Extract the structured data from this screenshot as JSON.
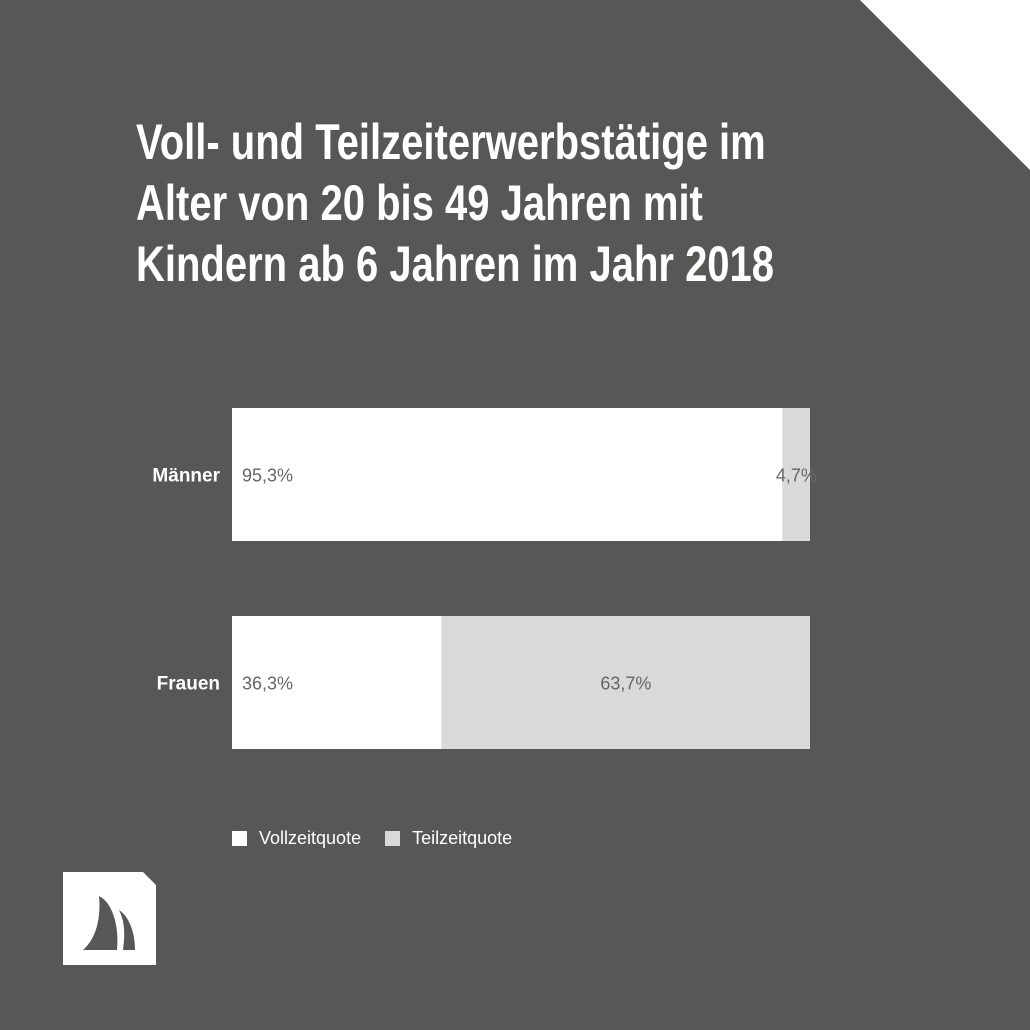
{
  "title_lines": [
    "Voll- und Teilzeiterwerbstätige im",
    "Alter von 20 bis 49 Jahren mit",
    "Kindern ab 6 Jahren im Jahr 2018"
  ],
  "colors": {
    "background": "#575756",
    "vollzeit": "#ffffff",
    "teilzeit": "#d9d9d9",
    "label_text": "#666666"
  },
  "chart_data": {
    "type": "bar",
    "orientation": "horizontal",
    "stacked": true,
    "title": "Voll- und Teilzeiterwerbstätige im Alter von 20 bis 49 Jahren mit Kindern ab 6 Jahren im Jahr 2018",
    "categories": [
      "Männer",
      "Frauen"
    ],
    "series": [
      {
        "name": "Vollzeitquote",
        "values": [
          95.3,
          36.3
        ],
        "labels": [
          "95,3%",
          "36,3%"
        ]
      },
      {
        "name": "Teilzeitquote",
        "values": [
          4.7,
          63.7
        ],
        "labels": [
          "4,7%",
          "63,7%"
        ]
      }
    ],
    "xlim": [
      0,
      100
    ],
    "grid": false,
    "legend": "bottom"
  }
}
